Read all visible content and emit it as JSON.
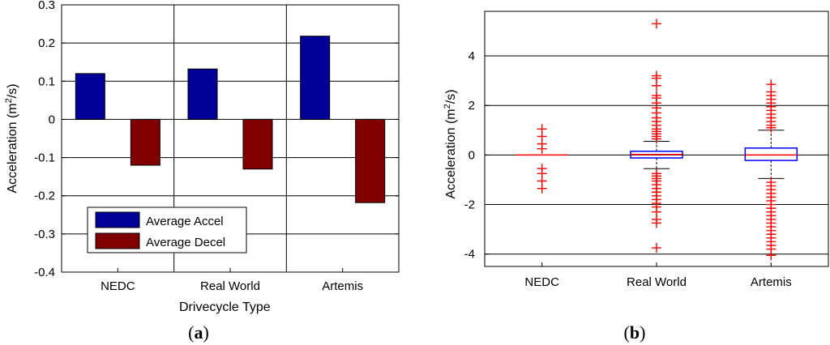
{
  "chart_data": [
    {
      "panel": "a",
      "type": "bar",
      "categories": [
        "NEDC",
        "Real World",
        "Artemis"
      ],
      "series": [
        {
          "name": "Average Accel",
          "color": "#000099",
          "values": [
            0.12,
            0.132,
            0.218
          ]
        },
        {
          "name": "Average Decel",
          "color": "#800000",
          "values": [
            -0.12,
            -0.13,
            -0.218
          ]
        }
      ],
      "xlabel": "Drivecycle Type",
      "ylabel": "Acceleration (m²/s)",
      "ylim": [
        -0.4,
        0.3
      ],
      "yticks": [
        0.3,
        0.2,
        0.1,
        0,
        -0.1,
        -0.2,
        -0.3,
        -0.4
      ],
      "ytick_labels": [
        "0.3",
        "0.2",
        "0.1",
        "0",
        "-0.1",
        "-0.2",
        "-0.3",
        "-0.4"
      ],
      "grid": true,
      "legend_position": "bottom-left"
    },
    {
      "panel": "b",
      "type": "box",
      "categories": [
        "NEDC",
        "Real World",
        "Artemis"
      ],
      "ylabel": "Acceleration (m²/s)",
      "ylim": [
        -4.5,
        5.8
      ],
      "yticks": [
        4,
        2,
        0,
        -2,
        -4
      ],
      "ytick_labels": [
        "4",
        "2",
        "0",
        "-2",
        "-4"
      ],
      "grid": "horizontal",
      "box_color": "#0000ff",
      "median_color": "#ff0000",
      "outlier_color": "#ff0000",
      "boxes": [
        {
          "name": "NEDC",
          "q1": 0,
          "median": 0,
          "q3": 0,
          "whisker_low": 0,
          "whisker_high": 0,
          "outliers": [
            1.05,
            0.75,
            0.45,
            0.25,
            -0.55,
            -0.75,
            -1.05,
            -1.35
          ]
        },
        {
          "name": "Real World",
          "q1": -0.12,
          "median": 0.02,
          "q3": 0.15,
          "whisker_low": -0.55,
          "whisker_high": 0.55,
          "outliers": [
            5.3,
            3.2,
            3.1,
            2.8,
            2.4,
            2.3,
            2.1,
            1.9,
            1.7,
            1.5,
            1.35,
            1.2,
            1.05,
            0.95,
            0.85,
            0.75,
            0.65,
            -0.75,
            -0.85,
            -0.95,
            -1.05,
            -1.2,
            -1.35,
            -1.5,
            -1.65,
            -1.8,
            -1.95,
            -2.1,
            -2.3,
            -2.6,
            -2.75,
            -3.75
          ]
        },
        {
          "name": "Artemis",
          "q1": -0.22,
          "median": 0.0,
          "q3": 0.28,
          "whisker_low": -0.95,
          "whisker_high": 1.0,
          "outliers": [
            2.85,
            2.55,
            2.4,
            2.25,
            2.1,
            1.95,
            1.8,
            1.65,
            1.5,
            1.35,
            1.2,
            1.1,
            -1.1,
            -1.25,
            -1.4,
            -1.55,
            -1.7,
            -1.85,
            -2.0,
            -2.15,
            -2.3,
            -2.45,
            -2.6,
            -2.75,
            -2.9,
            -3.05,
            -3.2,
            -3.35,
            -3.5,
            -3.65,
            -3.8,
            -4.05
          ]
        }
      ]
    }
  ],
  "labels": {
    "panel_a": "(a)",
    "panel_b": "(b)",
    "a_ylabel_pre": "Acceleration (m",
    "a_ylabel_sup": "2",
    "a_ylabel_post": "/s)",
    "b_ylabel_pre": "Acceleration (m",
    "b_ylabel_sup": "2",
    "b_ylabel_post": "/s)",
    "a_xlabel": "Drivecycle Type"
  }
}
